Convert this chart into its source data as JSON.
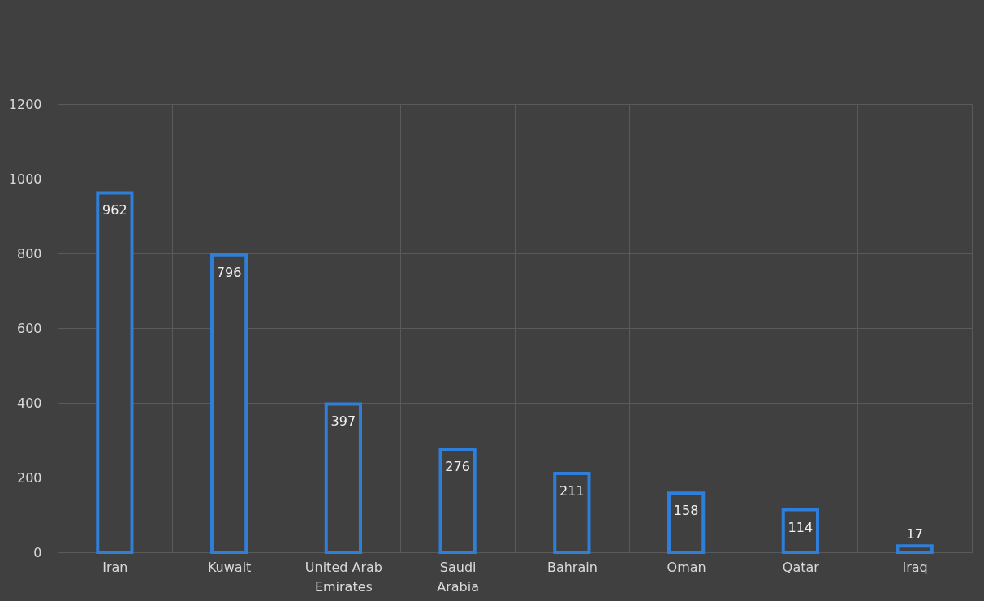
{
  "chart_data": {
    "type": "bar",
    "categories": [
      "Iran",
      "Kuwait",
      "United Arab Emirates",
      "Saudi Arabia",
      "Bahrain",
      "Oman",
      "Qatar",
      "Iraq"
    ],
    "values": [
      962,
      796,
      397,
      276,
      211,
      158,
      114,
      17
    ],
    "color": "#2f7ed8",
    "ylim": [
      0,
      1200
    ],
    "yticks": [
      0,
      200,
      400,
      600,
      800,
      1000,
      1200
    ],
    "grid": true,
    "data_labels": true
  }
}
